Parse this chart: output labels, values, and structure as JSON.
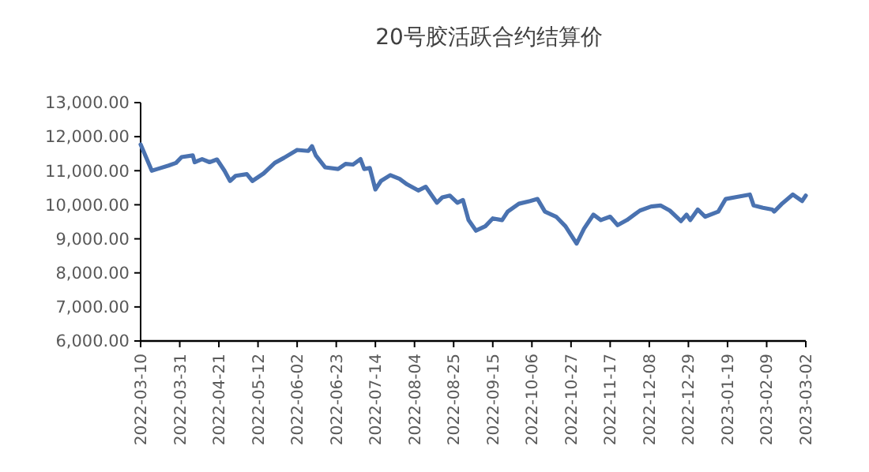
{
  "chart_data": {
    "type": "line",
    "title": "20号胶活跃合约结算价",
    "x": [
      "2022-03-10",
      "2022-03-16",
      "2022-03-19",
      "2022-03-25",
      "2022-03-29",
      "2022-04-01",
      "2022-04-07",
      "2022-04-08",
      "2022-04-12",
      "2022-04-16",
      "2022-04-20",
      "2022-04-24",
      "2022-04-27",
      "2022-04-30",
      "2022-05-06",
      "2022-05-09",
      "2022-05-15",
      "2022-05-21",
      "2022-05-26",
      "2022-06-02",
      "2022-06-08",
      "2022-06-10",
      "2022-06-12",
      "2022-06-17",
      "2022-06-24",
      "2022-06-28",
      "2022-07-02",
      "2022-07-06",
      "2022-07-08",
      "2022-07-11",
      "2022-07-14",
      "2022-07-17",
      "2022-07-22",
      "2022-07-27",
      "2022-07-31",
      "2022-08-06",
      "2022-08-10",
      "2022-08-16",
      "2022-08-19",
      "2022-08-23",
      "2022-08-27",
      "2022-08-30",
      "2022-09-02",
      "2022-09-06",
      "2022-09-11",
      "2022-09-15",
      "2022-09-20",
      "2022-09-23",
      "2022-09-29",
      "2022-10-05",
      "2022-10-09",
      "2022-10-13",
      "2022-10-19",
      "2022-10-24",
      "2022-10-30",
      "2022-11-03",
      "2022-11-08",
      "2022-11-12",
      "2022-11-17",
      "2022-11-21",
      "2022-11-26",
      "2022-11-30",
      "2022-12-03",
      "2022-12-09",
      "2022-12-14",
      "2022-12-19",
      "2022-12-25",
      "2022-12-28",
      "2022-12-30",
      "2023-01-03",
      "2023-01-07",
      "2023-01-14",
      "2023-01-18",
      "2023-01-24",
      "2023-01-31",
      "2023-02-02",
      "2023-02-07",
      "2023-02-12",
      "2023-02-13",
      "2023-02-17",
      "2023-02-23",
      "2023-02-28",
      "2023-03-02"
    ],
    "series": [
      {
        "color": "#4a72b0",
        "values": [
          11770,
          11000,
          11050,
          11150,
          11230,
          11400,
          11450,
          11250,
          11340,
          11250,
          11330,
          11000,
          10700,
          10850,
          10900,
          10700,
          10920,
          11230,
          11380,
          11610,
          11580,
          11720,
          11450,
          11100,
          11050,
          11200,
          11180,
          11340,
          11050,
          11080,
          10450,
          10700,
          10870,
          10760,
          10600,
          10420,
          10530,
          10060,
          10220,
          10270,
          10060,
          10140,
          9550,
          9240,
          9370,
          9600,
          9550,
          9800,
          10030,
          10110,
          10170,
          9800,
          9650,
          9370,
          8860,
          9300,
          9710,
          9550,
          9650,
          9400,
          9550,
          9710,
          9830,
          9950,
          9980,
          9830,
          9520,
          9710,
          9550,
          9860,
          9650,
          9800,
          10170,
          10230,
          10300,
          9980,
          9910,
          9860,
          9800,
          10020,
          10300,
          10110,
          10270
        ]
      }
    ],
    "xlim": [
      "2022-03-10",
      "2023-03-02"
    ],
    "xticks": [
      "2022-03-10",
      "2022-03-31",
      "2022-04-21",
      "2022-05-12",
      "2022-06-02",
      "2022-06-23",
      "2022-07-14",
      "2022-08-04",
      "2022-08-25",
      "2022-09-15",
      "2022-10-06",
      "2022-10-27",
      "2022-11-17",
      "2022-12-08",
      "2022-12-29",
      "2023-01-19",
      "2023-02-09",
      "2023-03-02"
    ],
    "ylim": [
      6000,
      13000
    ],
    "yticks": [
      {
        "value": 6000,
        "label": "6,000.00"
      },
      {
        "value": 7000,
        "label": "7,000.00"
      },
      {
        "value": 8000,
        "label": "8,000.00"
      },
      {
        "value": 9000,
        "label": "9,000.00"
      },
      {
        "value": 10000,
        "label": "10,000.00"
      },
      {
        "value": 11000,
        "label": "11,000.00"
      },
      {
        "value": 12000,
        "label": "12,000.00"
      },
      {
        "value": 13000,
        "label": "13,000.00"
      }
    ],
    "grid": false,
    "marker": "none",
    "line_style": "solid"
  }
}
